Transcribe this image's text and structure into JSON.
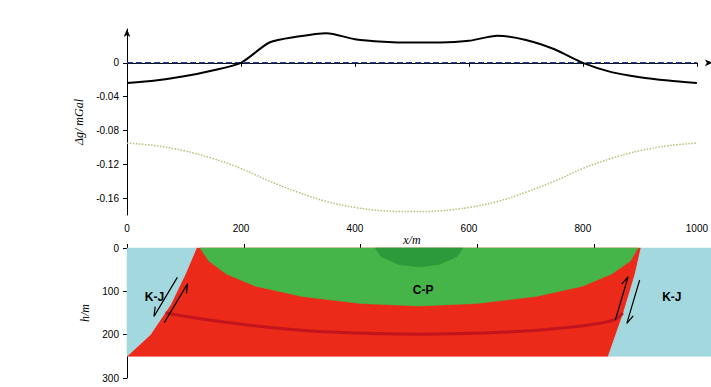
{
  "chart_data": [
    {
      "type": "line",
      "x": [
        0,
        50,
        100,
        150,
        200,
        250,
        300,
        350,
        400,
        450,
        500,
        550,
        600,
        650,
        700,
        750,
        800,
        850,
        900,
        950,
        1000
      ],
      "series": [
        {
          "color": "#000000",
          "line_style": "solid",
          "values": [
            -0.024,
            -0.021,
            -0.016,
            -0.009,
            0.0,
            0.024,
            0.031,
            0.035,
            0.028,
            0.025,
            0.024,
            0.024,
            0.026,
            0.032,
            0.027,
            0.016,
            0.0,
            -0.011,
            -0.017,
            -0.021,
            -0.024
          ]
        },
        {
          "color": "#1f3a8a",
          "line_style": "dashed",
          "values": [
            0,
            0,
            0,
            0,
            0,
            0,
            0,
            0,
            0,
            0,
            0,
            0,
            0,
            0,
            0,
            0,
            0,
            0,
            0,
            0,
            0
          ]
        },
        {
          "color": "#b3c27a",
          "line_style": "dotted",
          "values": [
            -0.095,
            -0.098,
            -0.104,
            -0.113,
            -0.125,
            -0.14,
            -0.153,
            -0.164,
            -0.171,
            -0.175,
            -0.176,
            -0.175,
            -0.171,
            -0.164,
            -0.153,
            -0.14,
            -0.125,
            -0.113,
            -0.104,
            -0.098,
            -0.095
          ]
        }
      ],
      "xlim": [
        0,
        1000
      ],
      "ylim": [
        -0.18,
        0.04
      ],
      "xticks": [
        0,
        200,
        400,
        600,
        800,
        1000
      ],
      "yticks": [
        -0.16,
        -0.12,
        -0.08,
        -0.04,
        0
      ],
      "xlabel": "x/m",
      "ylabel": "Δg/ mGal",
      "grid": false
    },
    {
      "type": "section",
      "xlim": [
        0,
        1000
      ],
      "ylim": [
        0,
        300
      ],
      "xticks": [
        0,
        200,
        400,
        600,
        800,
        1000
      ],
      "yticks": [
        0,
        100,
        200,
        300
      ],
      "ylabel": "h/m",
      "tick_labels": "y",
      "grid": false,
      "regions": [
        {
          "color": "#ec2a1a",
          "polygon": [
            [
              119,
              0
            ],
            [
              880,
              0
            ],
            [
              870,
              60
            ],
            [
              850,
              150
            ],
            [
              824,
              250
            ],
            [
              0,
              250
            ],
            [
              40,
              200
            ],
            [
              75,
              130
            ],
            [
              100,
              60
            ]
          ]
        },
        {
          "color": "#a3d8df",
          "polygon": [
            [
              0,
              0
            ],
            [
              119,
              0
            ],
            [
              100,
              60
            ],
            [
              75,
              130
            ],
            [
              40,
              200
            ],
            [
              0,
              250
            ]
          ]
        },
        {
          "color": "#a3d8df",
          "polygon": [
            [
              880,
              0
            ],
            [
              1000,
              0
            ],
            [
              1000,
              250
            ],
            [
              824,
              250
            ],
            [
              850,
              150
            ],
            [
              870,
              60
            ]
          ]
        },
        {
          "color": "#46b549",
          "polygon": [
            [
              125,
              0
            ],
            [
              875,
              0
            ],
            [
              862,
              30
            ],
            [
              830,
              60
            ],
            [
              780,
              88
            ],
            [
              700,
              112
            ],
            [
              600,
              128
            ],
            [
              500,
              134
            ],
            [
              400,
              128
            ],
            [
              300,
              112
            ],
            [
              220,
              88
            ],
            [
              170,
              60
            ],
            [
              140,
              30
            ]
          ]
        },
        {
          "color": "#2b9a3a",
          "polygon": [
            [
              425,
              0
            ],
            [
              575,
              0
            ],
            [
              565,
              20
            ],
            [
              535,
              38
            ],
            [
              500,
              44
            ],
            [
              465,
              38
            ],
            [
              435,
              20
            ]
          ]
        }
      ],
      "horizons": [
        {
          "color": "#c3141e",
          "x": [
            66,
            150,
            250,
            350,
            500,
            650,
            750,
            830,
            849
          ],
          "h": [
            150,
            168,
            184,
            194,
            199,
            194,
            184,
            168,
            150
          ]
        }
      ],
      "faults": [
        {
          "from": [
            95,
            75
          ],
          "to": [
            55,
            165
          ]
        },
        {
          "from": [
            868,
            70
          ],
          "to": [
            846,
            170
          ]
        }
      ],
      "annotations": [
        {
          "text": "K-J",
          "x": 47,
          "h": 112
        },
        {
          "text": "K-J",
          "x": 933,
          "h": 112
        },
        {
          "text": "C-P",
          "x": 507,
          "h": 96
        }
      ]
    }
  ]
}
